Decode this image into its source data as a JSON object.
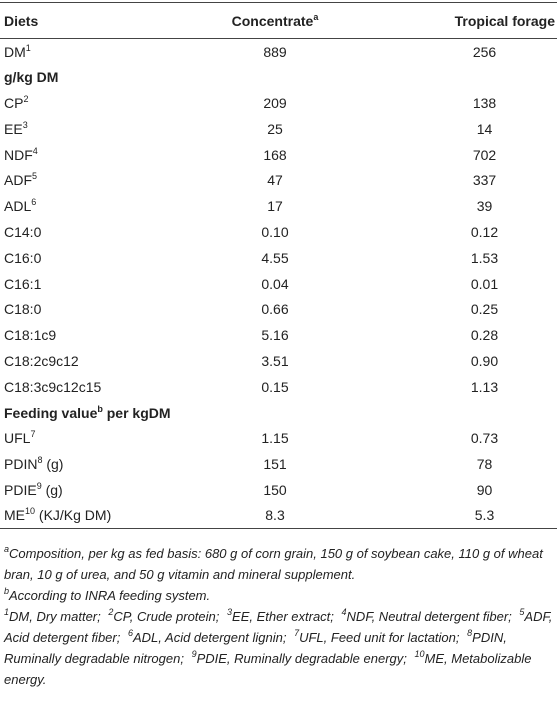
{
  "table": {
    "header": [
      {
        "text": "Diets"
      },
      {
        "text": "Concentrate",
        "sup": "a"
      },
      {
        "text": "Tropical forage"
      }
    ],
    "rows": [
      {
        "label": "DM",
        "sup": "1",
        "cells": [
          "889",
          "256"
        ]
      },
      {
        "section": "g/kg DM"
      },
      {
        "label": "CP",
        "sup": "2",
        "cells": [
          "209",
          "138"
        ]
      },
      {
        "label": "EE",
        "sup": "3",
        "cells": [
          "25",
          "14"
        ]
      },
      {
        "label": "NDF",
        "sup": "4",
        "cells": [
          "168",
          "702"
        ]
      },
      {
        "label": "ADF",
        "sup": "5",
        "cells": [
          "47",
          "337"
        ]
      },
      {
        "label": "ADL",
        "sup": "6",
        "cells": [
          "17",
          "39"
        ]
      },
      {
        "label": "C14:0",
        "cells": [
          "0.10",
          "0.12"
        ]
      },
      {
        "label": "C16:0",
        "cells": [
          "4.55",
          "1.53"
        ]
      },
      {
        "label": "C16:1",
        "cells": [
          "0.04",
          "0.01"
        ]
      },
      {
        "label": "C18:0",
        "cells": [
          "0.66",
          "0.25"
        ]
      },
      {
        "label": "C18:1c9",
        "cells": [
          "5.16",
          "0.28"
        ]
      },
      {
        "label": "C18:2c9c12",
        "cells": [
          "3.51",
          "0.90"
        ]
      },
      {
        "label": "C18:3c9c12c15",
        "cells": [
          "0.15",
          "1.13"
        ]
      },
      {
        "section": "Feeding value",
        "sup": "b",
        "after": "per kgDM"
      },
      {
        "label": "UFL",
        "sup": "7",
        "cells": [
          "1.15",
          "0.73"
        ]
      },
      {
        "label": "PDIN",
        "sup": "8",
        "after": "(g)",
        "cells": [
          "151",
          "78"
        ]
      },
      {
        "label": "PDIE",
        "sup": "9",
        "after": "(g)",
        "cells": [
          "150",
          "90"
        ]
      },
      {
        "label": "ME",
        "sup": "10",
        "after": "(KJ/Kg DM)",
        "cells": [
          "8.3",
          "5.3"
        ]
      }
    ]
  },
  "footnotes": [
    [
      {
        "sup": "a",
        "text": "Composition, per kg as fed basis: 680 g of corn grain, 150 g of soybean cake, 110 g of wheat bran, 10 g of urea, and 50 g vitamin and mineral supplement."
      }
    ],
    [
      {
        "sup": "b",
        "text": "According to INRA feeding system."
      }
    ],
    [
      {
        "sup": "1",
        "text": "DM, Dry matter;"
      },
      {
        "sup": "2",
        "text": "CP, Crude protein;"
      },
      {
        "sup": "3",
        "text": "EE, Ether extract;"
      },
      {
        "sup": "4",
        "text": "NDF, Neutral detergent fiber;"
      },
      {
        "sup": "5",
        "text": "ADF, Acid detergent fiber;"
      },
      {
        "sup": "6",
        "text": "ADL, Acid detergent lignin;"
      },
      {
        "sup": "7",
        "text": "UFL, Feed unit for lactation;"
      },
      {
        "sup": "8",
        "text": "PDIN, Ruminally degradable nitrogen;"
      },
      {
        "sup": "9",
        "text": "PDIE, Ruminally degradable energy;"
      },
      {
        "sup": "10",
        "text": "ME, Metabolizable energy."
      }
    ]
  ]
}
